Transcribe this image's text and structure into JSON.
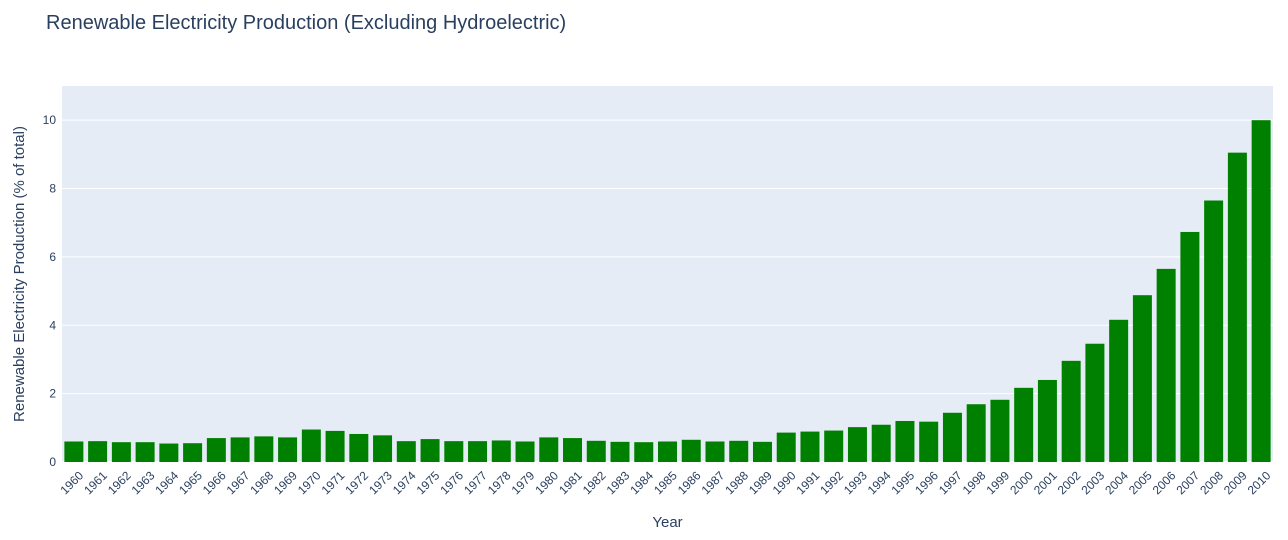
{
  "chart_data": {
    "type": "bar",
    "title": "Renewable Electricity Production (Excluding Hydroelectric)",
    "xlabel": "Year",
    "ylabel": "Renewable Electricity Production (% of total)",
    "ylim": [
      0,
      11
    ],
    "yticks": [
      0,
      2,
      4,
      6,
      8,
      10
    ],
    "grid": true,
    "bar_color": "#008000",
    "plot_background": "#e5ecf6",
    "categories": [
      "1960",
      "1961",
      "1962",
      "1963",
      "1964",
      "1965",
      "1966",
      "1967",
      "1968",
      "1969",
      "1970",
      "1971",
      "1972",
      "1973",
      "1974",
      "1975",
      "1976",
      "1977",
      "1978",
      "1979",
      "1980",
      "1981",
      "1982",
      "1983",
      "1984",
      "1985",
      "1986",
      "1987",
      "1988",
      "1989",
      "1990",
      "1991",
      "1992",
      "1993",
      "1994",
      "1995",
      "1996",
      "1997",
      "1998",
      "1999",
      "2000",
      "2001",
      "2002",
      "2003",
      "2004",
      "2005",
      "2006",
      "2007",
      "2008",
      "2009",
      "2010"
    ],
    "values": [
      0.6,
      0.61,
      0.58,
      0.58,
      0.54,
      0.55,
      0.7,
      0.72,
      0.75,
      0.72,
      0.95,
      0.91,
      0.82,
      0.78,
      0.61,
      0.67,
      0.61,
      0.61,
      0.63,
      0.6,
      0.72,
      0.7,
      0.62,
      0.59,
      0.58,
      0.6,
      0.65,
      0.6,
      0.62,
      0.59,
      0.86,
      0.89,
      0.92,
      1.02,
      1.09,
      1.2,
      1.18,
      1.44,
      1.69,
      1.82,
      2.17,
      2.4,
      2.96,
      3.46,
      4.16,
      4.88,
      5.65,
      6.73,
      7.65,
      9.05,
      10.0
    ]
  }
}
